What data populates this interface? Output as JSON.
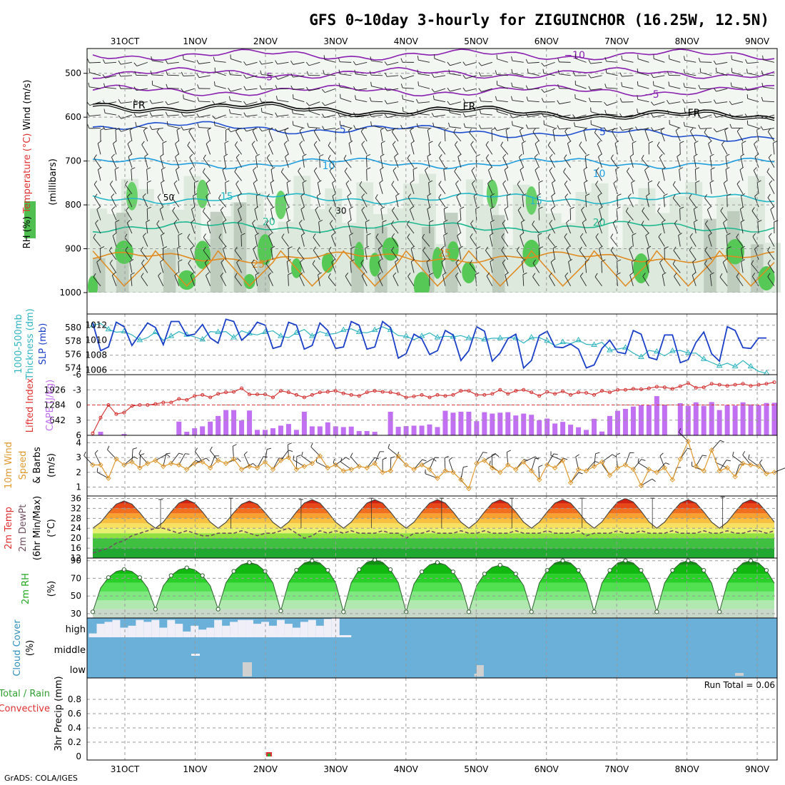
{
  "title": "GFS 0~10day 3-hourly for ZIGUINCHOR (16.25W, 12.5N)",
  "credit": "GrADS: COLA/IGES",
  "dates": [
    "31OCT",
    "1NOV",
    "2NOV",
    "3NOV",
    "4NOV",
    "5NOV",
    "6NOV",
    "7NOV",
    "8NOV",
    "9NOV"
  ],
  "chart_data": [
    {
      "type": "heatmap",
      "name": "upper-air",
      "ylabel_parts": [
        "RH (%)",
        "Temperature (°C)",
        "Wind (m/s)",
        "(millibars)"
      ],
      "yticks": [
        500,
        600,
        700,
        800,
        900,
        1000
      ],
      "ylim": [
        1000,
        450
      ],
      "isotherm_labels": [
        {
          "text": "−10",
          "color": "#8a1fb0"
        },
        {
          "text": "−5",
          "color": "#8a1fb0"
        },
        {
          "text": "FR",
          "color": "#000000"
        },
        {
          "text": "5",
          "color": "#1f4fd0"
        },
        {
          "text": "10",
          "color": "#1f9fe0"
        },
        {
          "text": "15",
          "color": "#22b8c8"
        },
        {
          "text": "20",
          "color": "#1fb890"
        },
        {
          "text": "25",
          "color": "#e08a1f"
        }
      ],
      "rh_labels": [
        "30",
        "50"
      ],
      "isotherms": [
        {
          "temp": -10,
          "p": 458,
          "color": "#8a1fb0"
        },
        {
          "temp": -5,
          "p": 500,
          "color": "#8a1fb0"
        },
        {
          "temp": -5,
          "p": 540,
          "color": "#8a1fb0"
        },
        {
          "temp": 0,
          "p": 572,
          "color": "#000000"
        },
        {
          "temp": 5,
          "p": 618,
          "color": "#1f4fd0"
        },
        {
          "temp": 10,
          "p": 705,
          "color": "#1f9fe0"
        },
        {
          "temp": 15,
          "p": 785,
          "color": "#22b8c8"
        },
        {
          "temp": 20,
          "p": 850,
          "color": "#1fb890"
        },
        {
          "temp": 25,
          "p": 920,
          "color": "#e08a1f"
        }
      ]
    },
    {
      "type": "line",
      "name": "slp-thickness",
      "ylabel_parts": [
        "1000-500mb",
        "Thickness (dm)",
        "SLP (mb)"
      ],
      "yticks_left": [
        574,
        576,
        578,
        580
      ],
      "ylim_left": [
        573,
        582
      ],
      "yticks_right": [
        1006,
        1008,
        1010,
        1012
      ],
      "ylim_right": [
        1005.4,
        1013.5
      ],
      "series": [
        {
          "axis": "right",
          "color": "#1a3fc8",
          "values": [
            1012.3,
            1008.6,
            1009.1,
            1012.4,
            1011.8,
            1009.3,
            1010.8,
            1012.3,
            1011.7,
            1009.4,
            1012.5,
            1012.5,
            1010.6,
            1010.8,
            1012.1,
            1010.3,
            1009.6,
            1012.8,
            1012.5,
            1010.0,
            1010.9,
            1012.4,
            1012.0,
            1008.9,
            1009.2,
            1012.4,
            1012.0,
            1008.8,
            1009.3,
            1012.3,
            1011.3,
            1008.9,
            1009.1,
            1012.5,
            1012.0,
            1008.8,
            1009.1,
            1012.5,
            1011.7,
            1007.6,
            1008.2,
            1010.8,
            1010.2,
            1008.1,
            1008.6,
            1011.3,
            1010.7,
            1007.3,
            1008.6,
            1011.8,
            1011.2,
            1007.2,
            1008.3,
            1010.2,
            1010.8,
            1006.3,
            1007.3,
            1010.6,
            1011.2,
            1009.1,
            1009.0,
            1009.5,
            1008.8,
            1006.3,
            1006.7,
            1008.9,
            1010.0,
            1008.4,
            1008.2,
            1011.3,
            1010.8,
            1007.7,
            1007.4,
            1010.7,
            1010.7,
            1007.0,
            1007.4,
            1009.7,
            1011.1,
            1008.2,
            1007.2,
            1011.8,
            1011.3,
            1009.0,
            1008.9,
            1010.3,
            1010.3
          ]
        },
        {
          "axis": "left",
          "color": "#2fb5c0",
          "values": [
            580.3,
            580.6,
            579.7,
            579.3,
            579.4,
            578.9,
            578.1,
            578.5,
            579.3,
            578.1,
            578.7,
            579.4,
            578.9,
            578.6,
            578.2,
            579.4,
            579.3,
            579.4,
            578.5,
            579.5,
            579.1,
            578.9,
            579.3,
            579.5,
            578.7,
            578.5,
            579.2,
            579.7,
            578.7,
            579.4,
            579.0,
            579.1,
            579.6,
            579.8,
            579.3,
            579.2,
            579.6,
            580.1,
            579.6,
            578.8,
            578.7,
            578.2,
            578.7,
            579.2,
            578.5,
            578.7,
            578.6,
            578.8,
            578.4,
            578.5,
            578.2,
            578.4,
            578.4,
            578.5,
            578.4,
            577.7,
            578.5,
            578.5,
            578.0,
            577.3,
            577.8,
            577.6,
            578.1,
            577.5,
            577.4,
            577.8,
            576.6,
            576.8,
            577.0,
            576.2,
            575.6,
            576.6,
            576.4,
            575.8,
            576.5,
            576.6,
            576.2,
            576.2,
            575.3,
            574.8,
            574.3,
            574.7,
            574.2,
            575.1,
            574.2,
            573.5,
            573.2
          ]
        }
      ]
    },
    {
      "type": "bar",
      "name": "cape-lifted-index",
      "ylabel_parts": [
        "Lifted Index",
        "CAPE (J/kg)"
      ],
      "yticks_left": [
        "6",
        "3",
        "0",
        "-3",
        "-6"
      ],
      "yticks_right": [
        "642",
        "1284",
        "1926"
      ],
      "cape_max": 2570,
      "cape_values": [
        0,
        150,
        0,
        0,
        60,
        0,
        0,
        0,
        0,
        0,
        0,
        580,
        150,
        300,
        380,
        580,
        820,
        1070,
        1070,
        630,
        1050,
        230,
        230,
        300,
        410,
        480,
        230,
        1000,
        380,
        380,
        550,
        380,
        350,
        370,
        180,
        180,
        150,
        0,
        1000,
        360,
        390,
        410,
        410,
        460,
        350,
        1040,
        960,
        1000,
        1000,
        600,
        980,
        920,
        960,
        980,
        840,
        920,
        870,
        640,
        710,
        500,
        570,
        450,
        340,
        230,
        700,
        160,
        820,
        1040,
        1120,
        1220,
        1280,
        1290,
        1660,
        1300,
        0,
        1360,
        1250,
        1400,
        1250,
        1410,
        1070,
        1290,
        1260,
        1400,
        1310,
        1270,
        1370,
        1380
      ]
    },
    {
      "type": "line",
      "name": "lifted-index",
      "ylim": [
        6,
        -6
      ],
      "color": "#d43030",
      "values": [
        5.6,
        2.5,
        0.0,
        1.8,
        1.5,
        0.2,
        0.0,
        0.0,
        -0.2,
        -0.5,
        -0.5,
        -1.2,
        -1.0,
        -1.8,
        -2.0,
        -1.5,
        -2.2,
        -2.5,
        -2.6,
        -3.3,
        -2.1,
        -2.1,
        -2.1,
        -1.5,
        -2.8,
        -2.5,
        -2.0,
        -1.5,
        -2.0,
        -2.5,
        -2.6,
        -2.8,
        -2.3,
        -2.0,
        -1.8,
        -2.5,
        -2.8,
        -2.6,
        -2.5,
        -2.2,
        -1.5,
        -1.7,
        -2.0,
        -1.5,
        -2.0,
        -1.8,
        -2.0,
        -2.8,
        -2.8,
        -2.0,
        -2.0,
        -2.2,
        -3.0,
        -2.2,
        -2.8,
        -3.0,
        -2.5,
        -1.8,
        -2.6,
        -2.2,
        -2.7,
        -2.0,
        -2.5,
        -2.4,
        -2.0,
        -2.8,
        -2.5,
        -3.0,
        -3.0,
        -3.2,
        -3.1,
        -3.3,
        -3.6,
        -3.5,
        -3.2,
        -3.7,
        -4.3,
        -3.4,
        -3.5,
        -4.2,
        -4.0,
        -3.8,
        -4.0,
        -4.2,
        -3.8,
        -4.0,
        -4.2,
        -4.5
      ]
    },
    {
      "type": "line",
      "name": "wind-10m",
      "ylabel_parts": [
        "10m Wind",
        "Speed",
        "& Barbs",
        "(m/s)"
      ],
      "yticks": [
        1,
        2,
        3,
        4
      ],
      "ylim": [
        0.4,
        4.5
      ],
      "color": "#e09a30",
      "values": [
        2.5,
        2.5,
        1.6,
        2.9,
        2.5,
        2.7,
        2.3,
        2.6,
        2.8,
        2.4,
        2.6,
        2.5,
        2.2,
        2.6,
        2.7,
        2.3,
        2.8,
        2.6,
        2.9,
        2.2,
        2.4,
        2.3,
        2.7,
        2.2,
        2.8,
        3.0,
        2.2,
        2.4,
        2.6,
        3.1,
        2.3,
        2.5,
        2.1,
        2.2,
        2.4,
        2.3,
        2.6,
        2.0,
        2.1,
        3.1,
        2.5,
        2.2,
        2.5,
        2.2,
        1.6,
        2.1,
        2.0,
        1.5,
        0.9,
        2.6,
        2.8,
        2.3,
        2.0,
        2.5,
        2.2,
        2.7,
        2.1,
        1.5,
        2.5,
        2.3,
        2.8,
        1.3,
        2.2,
        2.1,
        2.4,
        2.7,
        1.8,
        2.3,
        2.5,
        2.2,
        1.1,
        2.2,
        2.0,
        2.3,
        1.5,
        2.9,
        4.1,
        2.4,
        2.1,
        3.5,
        2.1,
        2.3,
        1.7,
        2.6,
        2.5,
        2.4,
        1.9,
        2.0
      ]
    },
    {
      "type": "area",
      "name": "temperature-2m",
      "ylabel_parts": [
        "2m Temp",
        "2m DewPt",
        "(6hr Min/Max)",
        "(°C)"
      ],
      "yticks": [
        12,
        16,
        20,
        24,
        28,
        32,
        36
      ],
      "ylim": [
        12,
        37
      ],
      "temp_max_per_day": [
        35,
        35.5,
        35,
        35.5,
        35.5,
        35.5,
        35.5,
        35.5,
        36,
        35.5
      ],
      "temp_min": 24,
      "dewpoint": [
        14,
        15,
        16,
        18,
        19,
        21,
        22,
        23,
        24,
        24,
        23,
        22,
        23,
        22,
        21,
        21,
        22,
        22,
        22,
        23,
        22,
        21,
        22,
        22,
        23,
        24,
        22,
        20,
        21,
        23,
        22,
        23,
        22,
        23,
        22,
        22,
        22,
        23,
        22,
        22,
        20,
        22,
        22,
        23,
        22,
        22,
        22,
        23,
        22,
        22,
        23,
        22,
        22,
        22,
        23,
        22,
        22,
        22,
        23,
        22,
        22,
        22,
        23,
        21,
        22,
        22,
        22,
        23,
        22,
        22,
        23,
        22,
        22,
        22,
        23,
        22,
        22,
        22,
        23,
        22,
        22,
        23,
        22,
        22,
        23,
        23,
        22,
        23
      ]
    },
    {
      "type": "area",
      "name": "rh-2m",
      "ylabel_parts": [
        "2m RH",
        "(%)"
      ],
      "yticks": [
        30,
        50,
        70,
        90
      ],
      "ylim": [
        25,
        93
      ],
      "day_max": [
        80,
        82,
        88,
        90,
        91,
        88,
        85,
        90,
        90,
        90
      ],
      "day_min": [
        32,
        35,
        35,
        33,
        32,
        32,
        32,
        32,
        32,
        32
      ]
    },
    {
      "type": "bar",
      "name": "cloud-cover",
      "ylabel_parts": [
        "Cloud Cover",
        "(%)"
      ],
      "levels": [
        "high",
        "middle",
        "low"
      ]
    },
    {
      "type": "bar",
      "name": "precip-3hr",
      "ylabel_parts": [
        "Total / Rain",
        "Convective",
        "3hr Precip (mm)"
      ],
      "yticks": [
        0,
        0.2,
        0.4,
        0.6,
        0.8
      ],
      "ylim": [
        0,
        0.95
      ],
      "run_total_text": "Run Total = 0.06",
      "events": [
        {
          "step": 22.5,
          "value": 0.06
        }
      ]
    }
  ]
}
